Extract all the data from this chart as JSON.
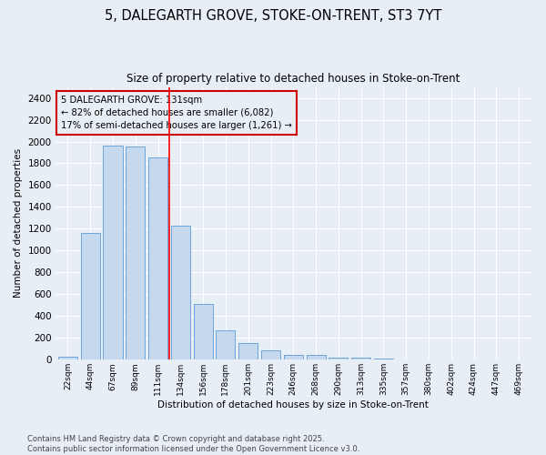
{
  "title_line1": "5, DALEGARTH GROVE, STOKE-ON-TRENT, ST3 7YT",
  "title_line2": "Size of property relative to detached houses in Stoke-on-Trent",
  "xlabel": "Distribution of detached houses by size in Stoke-on-Trent",
  "ylabel": "Number of detached properties",
  "categories": [
    "22sqm",
    "44sqm",
    "67sqm",
    "89sqm",
    "111sqm",
    "134sqm",
    "156sqm",
    "178sqm",
    "201sqm",
    "223sqm",
    "246sqm",
    "268sqm",
    "290sqm",
    "313sqm",
    "335sqm",
    "357sqm",
    "380sqm",
    "402sqm",
    "424sqm",
    "447sqm",
    "469sqm"
  ],
  "values": [
    28,
    1160,
    1960,
    1950,
    1850,
    1230,
    510,
    270,
    150,
    90,
    45,
    45,
    20,
    15,
    8,
    5,
    3,
    2,
    1,
    1,
    1
  ],
  "bar_color": "#c5d8ed",
  "bar_edge_color": "#5b9bd5",
  "bg_color": "#e8eef6",
  "grid_color": "#ffffff",
  "annotation_title": "5 DALEGARTH GROVE: 131sqm",
  "annotation_line2": "← 82% of detached houses are smaller (6,082)",
  "annotation_line3": "17% of semi-detached houses are larger (1,261) →",
  "annotation_box_color": "#cc0000",
  "red_line_x": 4.5,
  "ylim": [
    0,
    2500
  ],
  "yticks": [
    0,
    200,
    400,
    600,
    800,
    1000,
    1200,
    1400,
    1600,
    1800,
    2000,
    2200,
    2400
  ],
  "footer_line1": "Contains HM Land Registry data © Crown copyright and database right 2025.",
  "footer_line2": "Contains public sector information licensed under the Open Government Licence v3.0."
}
